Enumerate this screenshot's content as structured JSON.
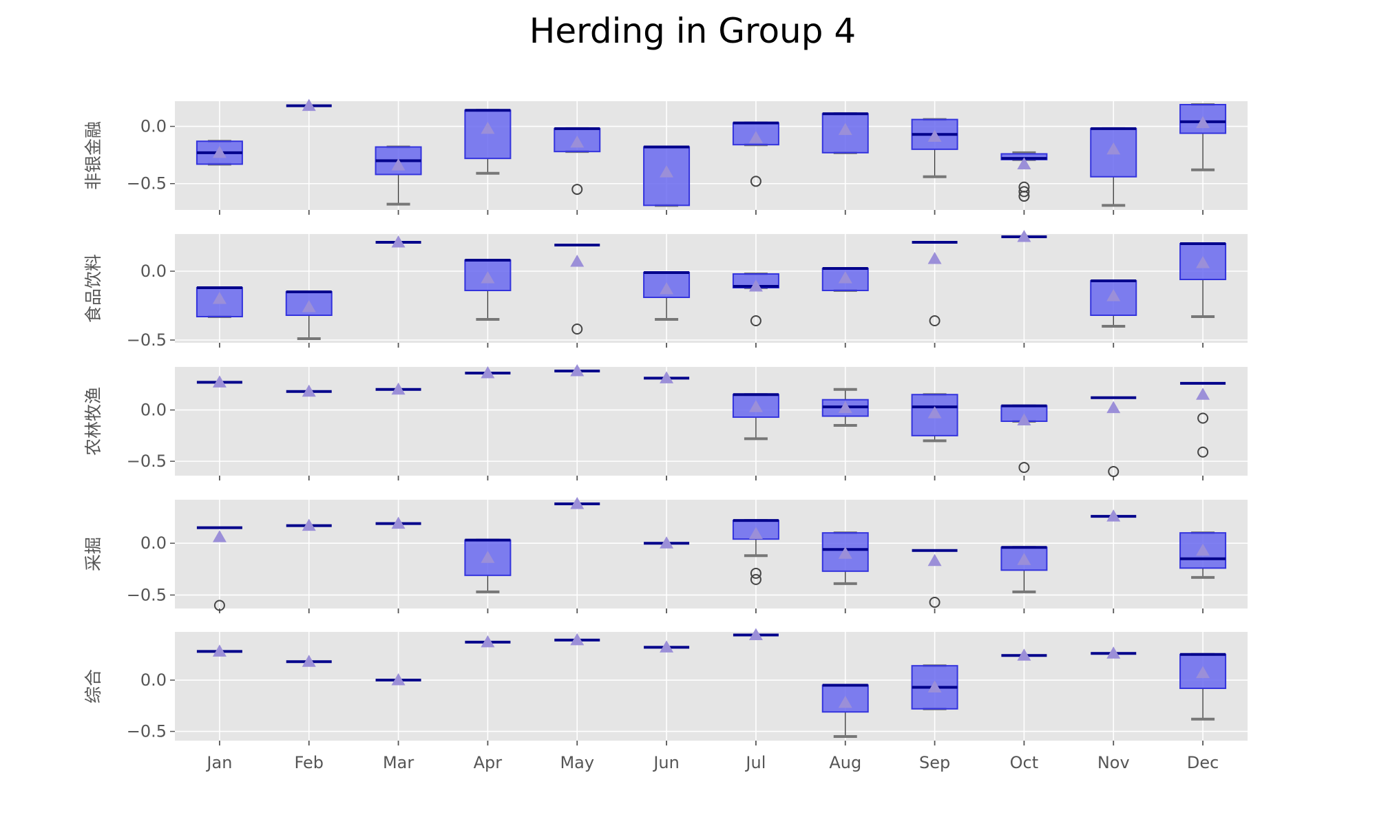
{
  "title": "Herding in Group 4",
  "chart_data": {
    "type": "box",
    "title": "Herding in Group 4",
    "categories": [
      "Jan",
      "Feb",
      "Mar",
      "Apr",
      "May",
      "Jun",
      "Jul",
      "Aug",
      "Sep",
      "Oct",
      "Nov",
      "Dec"
    ],
    "colors": {
      "box_fill": "#6a6af0",
      "box_edge": "#3333dd",
      "median": "#00008b",
      "whisker": "#777777",
      "mean_marker": "#9b8fd8",
      "outlier": "#444444",
      "axes_bg": "#e5e5e5",
      "grid": "#ffffff"
    },
    "panels": [
      {
        "ylabel": "非银金融",
        "ylim": [
          -0.73,
          0.22
        ],
        "yticks": [
          0.0,
          -0.5
        ],
        "ytick_labels": [
          "0.0",
          "−0.5"
        ],
        "boxes": [
          {
            "q1": -0.33,
            "q3": -0.13,
            "median": -0.23,
            "wlo": -0.33,
            "whi": -0.13,
            "mean": -0.23,
            "outliers": []
          },
          {
            "q1": 0.18,
            "q3": 0.18,
            "median": 0.18,
            "wlo": 0.18,
            "whi": 0.18,
            "mean": 0.18,
            "outliers": []
          },
          {
            "q1": -0.42,
            "q3": -0.18,
            "median": -0.3,
            "wlo": -0.68,
            "whi": -0.18,
            "mean": -0.34,
            "outliers": []
          },
          {
            "q1": -0.28,
            "q3": 0.14,
            "median": 0.14,
            "wlo": -0.41,
            "whi": 0.14,
            "mean": -0.02,
            "outliers": []
          },
          {
            "q1": -0.22,
            "q3": -0.02,
            "median": -0.02,
            "wlo": -0.22,
            "whi": -0.02,
            "mean": -0.14,
            "outliers": [
              -0.55
            ]
          },
          {
            "q1": -0.69,
            "q3": -0.18,
            "median": -0.18,
            "wlo": -0.69,
            "whi": -0.18,
            "mean": -0.4,
            "outliers": []
          },
          {
            "q1": -0.16,
            "q3": 0.03,
            "median": 0.03,
            "wlo": -0.16,
            "whi": 0.03,
            "mean": -0.1,
            "outliers": [
              -0.48
            ]
          },
          {
            "q1": -0.23,
            "q3": 0.11,
            "median": 0.11,
            "wlo": -0.23,
            "whi": 0.11,
            "mean": -0.03,
            "outliers": []
          },
          {
            "q1": -0.2,
            "q3": 0.06,
            "median": -0.07,
            "wlo": -0.44,
            "whi": 0.06,
            "mean": -0.09,
            "outliers": []
          },
          {
            "q1": -0.29,
            "q3": -0.24,
            "median": -0.28,
            "wlo": -0.29,
            "whi": -0.23,
            "mean": -0.33,
            "outliers": [
              -0.53,
              -0.57,
              -0.61
            ]
          },
          {
            "q1": -0.44,
            "q3": -0.02,
            "median": -0.02,
            "wlo": -0.69,
            "whi": -0.02,
            "mean": -0.2,
            "outliers": []
          },
          {
            "q1": -0.06,
            "q3": 0.19,
            "median": 0.04,
            "wlo": -0.38,
            "whi": 0.19,
            "mean": 0.03,
            "outliers": []
          }
        ]
      },
      {
        "ylabel": "食品饮料",
        "ylim": [
          -0.52,
          0.27
        ],
        "yticks": [
          0.0,
          -0.5
        ],
        "ytick_labels": [
          "0.0",
          "−0.5"
        ],
        "boxes": [
          {
            "q1": -0.33,
            "q3": -0.12,
            "median": -0.12,
            "wlo": -0.33,
            "whi": -0.12,
            "mean": -0.2,
            "outliers": []
          },
          {
            "q1": -0.32,
            "q3": -0.15,
            "median": -0.15,
            "wlo": -0.49,
            "whi": -0.15,
            "mean": -0.26,
            "outliers": []
          },
          {
            "q1": 0.21,
            "q3": 0.21,
            "median": 0.21,
            "wlo": 0.21,
            "whi": 0.21,
            "mean": 0.21,
            "outliers": []
          },
          {
            "q1": -0.14,
            "q3": 0.08,
            "median": 0.08,
            "wlo": -0.35,
            "whi": 0.08,
            "mean": -0.05,
            "outliers": []
          },
          {
            "q1": 0.19,
            "q3": 0.19,
            "median": 0.19,
            "wlo": 0.19,
            "whi": 0.19,
            "mean": 0.07,
            "outliers": [
              -0.42
            ]
          },
          {
            "q1": -0.19,
            "q3": -0.01,
            "median": -0.01,
            "wlo": -0.35,
            "whi": -0.01,
            "mean": -0.13,
            "outliers": []
          },
          {
            "q1": -0.12,
            "q3": -0.02,
            "median": -0.11,
            "wlo": -0.12,
            "whi": -0.02,
            "mean": -0.11,
            "outliers": [
              -0.36
            ]
          },
          {
            "q1": -0.14,
            "q3": 0.02,
            "median": 0.02,
            "wlo": -0.14,
            "whi": 0.02,
            "mean": -0.05,
            "outliers": []
          },
          {
            "q1": 0.21,
            "q3": 0.21,
            "median": 0.21,
            "wlo": 0.21,
            "whi": 0.21,
            "mean": 0.09,
            "outliers": [
              -0.36
            ]
          },
          {
            "q1": 0.25,
            "q3": 0.25,
            "median": 0.25,
            "wlo": 0.25,
            "whi": 0.25,
            "mean": 0.25,
            "outliers": []
          },
          {
            "q1": -0.32,
            "q3": -0.07,
            "median": -0.07,
            "wlo": -0.4,
            "whi": -0.07,
            "mean": -0.18,
            "outliers": []
          },
          {
            "q1": -0.06,
            "q3": 0.2,
            "median": 0.2,
            "wlo": -0.33,
            "whi": 0.2,
            "mean": 0.06,
            "outliers": []
          }
        ]
      },
      {
        "ylabel": "农林牧渔",
        "ylim": [
          -0.64,
          0.42
        ],
        "yticks": [
          0.0,
          -0.5
        ],
        "ytick_labels": [
          "0.0",
          "−0.5"
        ],
        "boxes": [
          {
            "q1": 0.27,
            "q3": 0.27,
            "median": 0.27,
            "wlo": 0.27,
            "whi": 0.27,
            "mean": 0.27,
            "outliers": []
          },
          {
            "q1": 0.18,
            "q3": 0.18,
            "median": 0.18,
            "wlo": 0.18,
            "whi": 0.18,
            "mean": 0.18,
            "outliers": []
          },
          {
            "q1": 0.2,
            "q3": 0.2,
            "median": 0.2,
            "wlo": 0.2,
            "whi": 0.2,
            "mean": 0.2,
            "outliers": []
          },
          {
            "q1": 0.36,
            "q3": 0.36,
            "median": 0.36,
            "wlo": 0.36,
            "whi": 0.36,
            "mean": 0.36,
            "outliers": []
          },
          {
            "q1": 0.38,
            "q3": 0.38,
            "median": 0.38,
            "wlo": 0.38,
            "whi": 0.38,
            "mean": 0.38,
            "outliers": []
          },
          {
            "q1": 0.31,
            "q3": 0.31,
            "median": 0.31,
            "wlo": 0.31,
            "whi": 0.31,
            "mean": 0.31,
            "outliers": []
          },
          {
            "q1": -0.07,
            "q3": 0.15,
            "median": 0.15,
            "wlo": -0.28,
            "whi": 0.15,
            "mean": 0.03,
            "outliers": []
          },
          {
            "q1": -0.06,
            "q3": 0.1,
            "median": 0.03,
            "wlo": -0.15,
            "whi": 0.2,
            "mean": 0.02,
            "outliers": []
          },
          {
            "q1": -0.25,
            "q3": 0.15,
            "median": 0.03,
            "wlo": -0.3,
            "whi": 0.15,
            "mean": -0.03,
            "outliers": []
          },
          {
            "q1": -0.11,
            "q3": 0.04,
            "median": 0.04,
            "wlo": -0.11,
            "whi": 0.04,
            "mean": -0.1,
            "outliers": [
              -0.56
            ]
          },
          {
            "q1": 0.12,
            "q3": 0.12,
            "median": 0.12,
            "wlo": 0.12,
            "whi": 0.12,
            "mean": 0.02,
            "outliers": [
              -0.6
            ]
          },
          {
            "q1": 0.26,
            "q3": 0.26,
            "median": 0.26,
            "wlo": 0.26,
            "whi": 0.26,
            "mean": 0.15,
            "outliers": [
              -0.08,
              -0.41
            ]
          }
        ]
      },
      {
        "ylabel": "采掘",
        "ylim": [
          -0.63,
          0.42
        ],
        "yticks": [
          0.0,
          -0.5
        ],
        "ytick_labels": [
          "0.0",
          "−0.5"
        ],
        "boxes": [
          {
            "q1": 0.15,
            "q3": 0.15,
            "median": 0.15,
            "wlo": 0.15,
            "whi": 0.15,
            "mean": 0.06,
            "outliers": [
              -0.6
            ]
          },
          {
            "q1": 0.17,
            "q3": 0.17,
            "median": 0.17,
            "wlo": 0.17,
            "whi": 0.17,
            "mean": 0.17,
            "outliers": []
          },
          {
            "q1": 0.19,
            "q3": 0.19,
            "median": 0.19,
            "wlo": 0.19,
            "whi": 0.19,
            "mean": 0.19,
            "outliers": []
          },
          {
            "q1": -0.31,
            "q3": 0.03,
            "median": 0.03,
            "wlo": -0.47,
            "whi": 0.03,
            "mean": -0.14,
            "outliers": []
          },
          {
            "q1": 0.38,
            "q3": 0.38,
            "median": 0.38,
            "wlo": 0.38,
            "whi": 0.38,
            "mean": 0.38,
            "outliers": []
          },
          {
            "q1": 0.0,
            "q3": 0.0,
            "median": 0.0,
            "wlo": 0.0,
            "whi": 0.0,
            "mean": 0.0,
            "outliers": []
          },
          {
            "q1": 0.04,
            "q3": 0.22,
            "median": 0.22,
            "wlo": -0.12,
            "whi": 0.22,
            "mean": 0.09,
            "outliers": [
              -0.29,
              -0.35
            ]
          },
          {
            "q1": -0.27,
            "q3": 0.1,
            "median": -0.06,
            "wlo": -0.39,
            "whi": 0.1,
            "mean": -0.1,
            "outliers": []
          },
          {
            "q1": -0.07,
            "q3": -0.07,
            "median": -0.07,
            "wlo": -0.07,
            "whi": -0.07,
            "mean": -0.17,
            "outliers": [
              -0.57
            ]
          },
          {
            "q1": -0.26,
            "q3": -0.04,
            "median": -0.04,
            "wlo": -0.47,
            "whi": -0.04,
            "mean": -0.16,
            "outliers": []
          },
          {
            "q1": 0.26,
            "q3": 0.26,
            "median": 0.26,
            "wlo": 0.26,
            "whi": 0.26,
            "mean": 0.26,
            "outliers": []
          },
          {
            "q1": -0.24,
            "q3": 0.1,
            "median": -0.15,
            "wlo": -0.33,
            "whi": 0.1,
            "mean": -0.07,
            "outliers": []
          }
        ]
      },
      {
        "ylabel": "综合",
        "ylim": [
          -0.59,
          0.47
        ],
        "yticks": [
          0.0,
          -0.5
        ],
        "ytick_labels": [
          "0.0",
          "−0.5"
        ],
        "boxes": [
          {
            "q1": 0.28,
            "q3": 0.28,
            "median": 0.28,
            "wlo": 0.28,
            "whi": 0.28,
            "mean": 0.28,
            "outliers": []
          },
          {
            "q1": 0.18,
            "q3": 0.18,
            "median": 0.18,
            "wlo": 0.18,
            "whi": 0.18,
            "mean": 0.18,
            "outliers": []
          },
          {
            "q1": 0.0,
            "q3": 0.0,
            "median": 0.0,
            "wlo": 0.0,
            "whi": 0.0,
            "mean": 0.0,
            "outliers": []
          },
          {
            "q1": 0.37,
            "q3": 0.37,
            "median": 0.37,
            "wlo": 0.37,
            "whi": 0.37,
            "mean": 0.37,
            "outliers": []
          },
          {
            "q1": 0.39,
            "q3": 0.39,
            "median": 0.39,
            "wlo": 0.39,
            "whi": 0.39,
            "mean": 0.39,
            "outliers": []
          },
          {
            "q1": 0.32,
            "q3": 0.32,
            "median": 0.32,
            "wlo": 0.32,
            "whi": 0.32,
            "mean": 0.32,
            "outliers": []
          },
          {
            "q1": 0.44,
            "q3": 0.44,
            "median": 0.44,
            "wlo": 0.44,
            "whi": 0.44,
            "mean": 0.44,
            "outliers": []
          },
          {
            "q1": -0.31,
            "q3": -0.05,
            "median": -0.05,
            "wlo": -0.55,
            "whi": -0.05,
            "mean": -0.22,
            "outliers": []
          },
          {
            "q1": -0.28,
            "q3": 0.14,
            "median": -0.07,
            "wlo": -0.28,
            "whi": 0.14,
            "mean": -0.07,
            "outliers": []
          },
          {
            "q1": 0.24,
            "q3": 0.24,
            "median": 0.24,
            "wlo": 0.24,
            "whi": 0.24,
            "mean": 0.24,
            "outliers": []
          },
          {
            "q1": 0.26,
            "q3": 0.26,
            "median": 0.26,
            "wlo": 0.26,
            "whi": 0.26,
            "mean": 0.26,
            "outliers": []
          },
          {
            "q1": -0.08,
            "q3": 0.25,
            "median": 0.25,
            "wlo": -0.38,
            "whi": 0.25,
            "mean": 0.07,
            "outliers": []
          }
        ]
      }
    ]
  }
}
